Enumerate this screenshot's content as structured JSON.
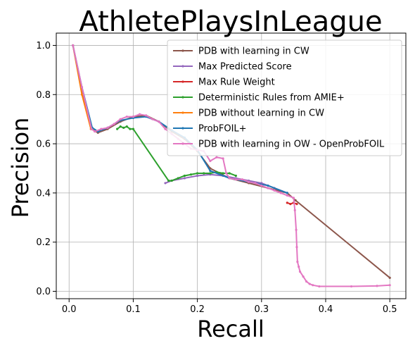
{
  "chart_data": {
    "type": "line",
    "title": "AthletePlaysInLeague",
    "xlabel": "Recall",
    "ylabel": "Precision",
    "xlim": [
      -0.02,
      0.525
    ],
    "ylim": [
      -0.03,
      1.05
    ],
    "xticks": [
      0.0,
      0.1,
      0.2,
      0.3,
      0.4,
      0.5
    ],
    "yticks": [
      0.0,
      0.2,
      0.4,
      0.6,
      0.8,
      1.0
    ],
    "xtick_labels": [
      "0.0",
      "0.1",
      "0.2",
      "0.3",
      "0.4",
      "0.5"
    ],
    "ytick_labels": [
      "0.0",
      "0.2",
      "0.4",
      "0.6",
      "0.8",
      "1.0"
    ],
    "grid": true,
    "legend_position": "top-right",
    "series": [
      {
        "name": "PDB with learning in CW",
        "color": "#8c564b",
        "x": [
          0.006,
          0.02,
          0.035,
          0.045,
          0.06,
          0.08,
          0.1,
          0.12,
          0.14,
          0.16,
          0.18,
          0.2,
          0.22,
          0.25,
          0.28,
          0.31,
          0.34,
          0.353,
          0.5
        ],
        "y": [
          1.0,
          0.82,
          0.66,
          0.645,
          0.66,
          0.69,
          0.71,
          0.715,
          0.69,
          0.65,
          0.62,
          0.57,
          0.5,
          0.46,
          0.44,
          0.42,
          0.4,
          0.37,
          0.055
        ]
      },
      {
        "name": "Max Predicted Score",
        "color": "#9467bd",
        "x": [
          0.15,
          0.16,
          0.18,
          0.2,
          0.22,
          0.24,
          0.26,
          0.28,
          0.3,
          0.32,
          0.34
        ],
        "y": [
          0.44,
          0.45,
          0.46,
          0.47,
          0.475,
          0.47,
          0.46,
          0.45,
          0.44,
          0.42,
          0.4
        ]
      },
      {
        "name": "Max Rule Weight",
        "color": "#d62728",
        "x": [
          0.34,
          0.345,
          0.35,
          0.355
        ],
        "y": [
          0.36,
          0.355,
          0.36,
          0.355
        ]
      },
      {
        "name": "Deterministic Rules from AMIE+",
        "color": "#2ca02c",
        "x": [
          0.075,
          0.08,
          0.085,
          0.09,
          0.095,
          0.1,
          0.155,
          0.16,
          0.17,
          0.18,
          0.19,
          0.2,
          0.21,
          0.22,
          0.23,
          0.24,
          0.25,
          0.26
        ],
        "y": [
          0.66,
          0.67,
          0.665,
          0.67,
          0.66,
          0.66,
          0.45,
          0.45,
          0.46,
          0.47,
          0.475,
          0.48,
          0.48,
          0.48,
          0.485,
          0.48,
          0.48,
          0.47
        ]
      },
      {
        "name": "PDB without learning in CW",
        "color": "#ff7f0e",
        "x": [
          0.006,
          0.02,
          0.034,
          0.04
        ],
        "y": [
          1.0,
          0.8,
          0.66,
          0.655
        ]
      },
      {
        "name": "ProbFOIL+",
        "color": "#1f77b4",
        "x": [
          0.006,
          0.02,
          0.036,
          0.045,
          0.06,
          0.08,
          0.1,
          0.12,
          0.14,
          0.16,
          0.18,
          0.2,
          0.22,
          0.25,
          0.28,
          0.31,
          0.34
        ],
        "y": [
          1.0,
          0.83,
          0.665,
          0.65,
          0.665,
          0.695,
          0.705,
          0.71,
          0.69,
          0.655,
          0.625,
          0.575,
          0.49,
          0.46,
          0.445,
          0.43,
          0.4
        ]
      },
      {
        "name": "PDB with learning in OW - OpenProbFOIL",
        "color": "#e377c2",
        "x": [
          0.006,
          0.02,
          0.035,
          0.04,
          0.05,
          0.06,
          0.07,
          0.08,
          0.09,
          0.1,
          0.11,
          0.12,
          0.13,
          0.14,
          0.15,
          0.16,
          0.17,
          0.18,
          0.19,
          0.2,
          0.21,
          0.22,
          0.23,
          0.24,
          0.245,
          0.25,
          0.26,
          0.27,
          0.28,
          0.29,
          0.3,
          0.31,
          0.32,
          0.33,
          0.34,
          0.35,
          0.352,
          0.354,
          0.355,
          0.356,
          0.358,
          0.36,
          0.365,
          0.37,
          0.375,
          0.38,
          0.39,
          0.44,
          0.48,
          0.5
        ],
        "y": [
          1.0,
          0.83,
          0.66,
          0.65,
          0.66,
          0.665,
          0.68,
          0.7,
          0.71,
          0.71,
          0.72,
          0.715,
          0.7,
          0.69,
          0.66,
          0.64,
          0.62,
          0.6,
          0.58,
          0.575,
          0.57,
          0.53,
          0.545,
          0.54,
          0.48,
          0.46,
          0.455,
          0.455,
          0.445,
          0.44,
          0.43,
          0.42,
          0.41,
          0.4,
          0.39,
          0.38,
          0.33,
          0.25,
          0.18,
          0.12,
          0.1,
          0.08,
          0.06,
          0.04,
          0.03,
          0.025,
          0.02,
          0.02,
          0.022,
          0.025
        ]
      }
    ]
  }
}
